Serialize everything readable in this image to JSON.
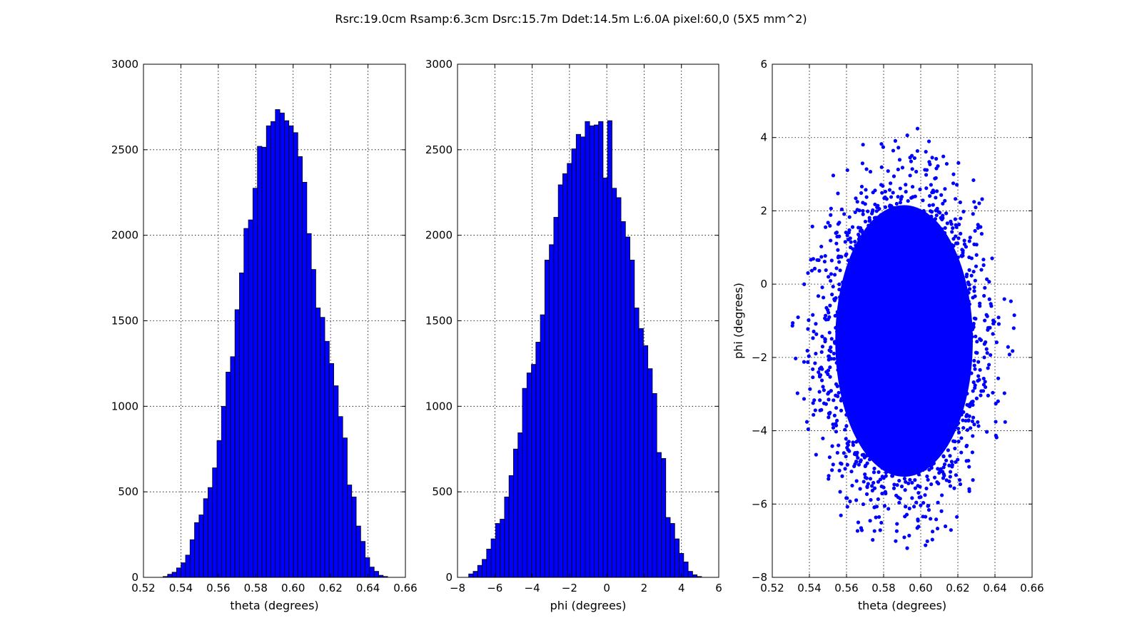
{
  "figure": {
    "suptitle": "Rsrc:19.0cm Rsamp:6.3cm Dsrc:15.7m Ddet:14.5m L:6.0A pixel:60,0 (5X5 mm^2)"
  },
  "colors": {
    "bar": "#0000ff",
    "edge": "#000000",
    "marker": "#0000ff"
  },
  "chart_data": [
    {
      "type": "bar",
      "subtype": "histogram",
      "xlabel": "theta (degrees)",
      "ylabel": "",
      "xlim": [
        0.52,
        0.66
      ],
      "ylim": [
        0,
        3000
      ],
      "xticks": [
        0.52,
        0.54,
        0.56,
        0.58,
        0.6,
        0.62,
        0.64,
        0.66
      ],
      "xtick_labels": [
        "0.52",
        "0.54",
        "0.56",
        "0.58",
        "0.60",
        "0.62",
        "0.64",
        "0.66"
      ],
      "yticks": [
        0,
        500,
        1000,
        1500,
        2000,
        2500,
        3000
      ],
      "ytick_labels": [
        "0",
        "500",
        "1000",
        "1500",
        "2000",
        "2500",
        "3000"
      ],
      "grid": true,
      "bin_start": 0.5305,
      "bin_width": 0.0024,
      "values": [
        5,
        18,
        30,
        55,
        85,
        130,
        220,
        320,
        365,
        460,
        525,
        640,
        800,
        1000,
        1200,
        1290,
        1565,
        1780,
        2040,
        2090,
        2275,
        2520,
        2515,
        2640,
        2665,
        2735,
        2715,
        2670,
        2640,
        2600,
        2460,
        2310,
        2010,
        1800,
        1575,
        1520,
        1380,
        1250,
        1120,
        940,
        815,
        540,
        470,
        300,
        210,
        115,
        60,
        35,
        12,
        5
      ]
    },
    {
      "type": "bar",
      "subtype": "histogram",
      "xlabel": "phi (degrees)",
      "ylabel": "",
      "xlim": [
        -8,
        6
      ],
      "ylim": [
        0,
        3000
      ],
      "xticks": [
        -8,
        -6,
        -4,
        -2,
        0,
        2,
        4,
        6
      ],
      "xtick_labels": [
        "−8",
        "−6",
        "−4",
        "−2",
        "0",
        "2",
        "4",
        "6"
      ],
      "yticks": [
        0,
        500,
        1000,
        1500,
        2000,
        2500,
        3000
      ],
      "ytick_labels": [
        "0",
        "500",
        "1000",
        "1500",
        "2000",
        "2500",
        "3000"
      ],
      "grid": true,
      "bin_start": -7.4,
      "bin_width": 0.24,
      "values": [
        20,
        35,
        70,
        105,
        165,
        225,
        315,
        340,
        470,
        595,
        750,
        845,
        1105,
        1195,
        1245,
        1375,
        1535,
        1855,
        1945,
        2105,
        2295,
        2360,
        2420,
        2505,
        2590,
        2575,
        2665,
        2640,
        2645,
        2665,
        2335,
        2670,
        2275,
        2220,
        2080,
        1990,
        1855,
        1575,
        1455,
        1355,
        1220,
        1075,
        730,
        695,
        350,
        315,
        225,
        140,
        90,
        35,
        15,
        5
      ]
    },
    {
      "type": "scatter",
      "xlabel": "theta (degrees)",
      "ylabel": "phi (degrees)",
      "xlim": [
        0.52,
        0.66
      ],
      "ylim": [
        -8,
        6
      ],
      "xticks": [
        0.52,
        0.54,
        0.56,
        0.58,
        0.6,
        0.62,
        0.64,
        0.66
      ],
      "xtick_labels": [
        "0.52",
        "0.54",
        "0.56",
        "0.58",
        "0.60",
        "0.62",
        "0.64",
        "0.66"
      ],
      "yticks": [
        -8,
        -6,
        -4,
        -2,
        0,
        2,
        4,
        6
      ],
      "ytick_labels": [
        "−8",
        "−6",
        "−4",
        "−2",
        "0",
        "2",
        "4",
        "6"
      ],
      "grid": true,
      "distribution": {
        "center": [
          0.591,
          -1.55
        ],
        "spread": [
          0.0195,
          1.95
        ],
        "extent_x": [
          0.531,
          0.652
        ],
        "extent_y": [
          -7.3,
          4.4
        ],
        "point_count": 4500
      }
    }
  ]
}
